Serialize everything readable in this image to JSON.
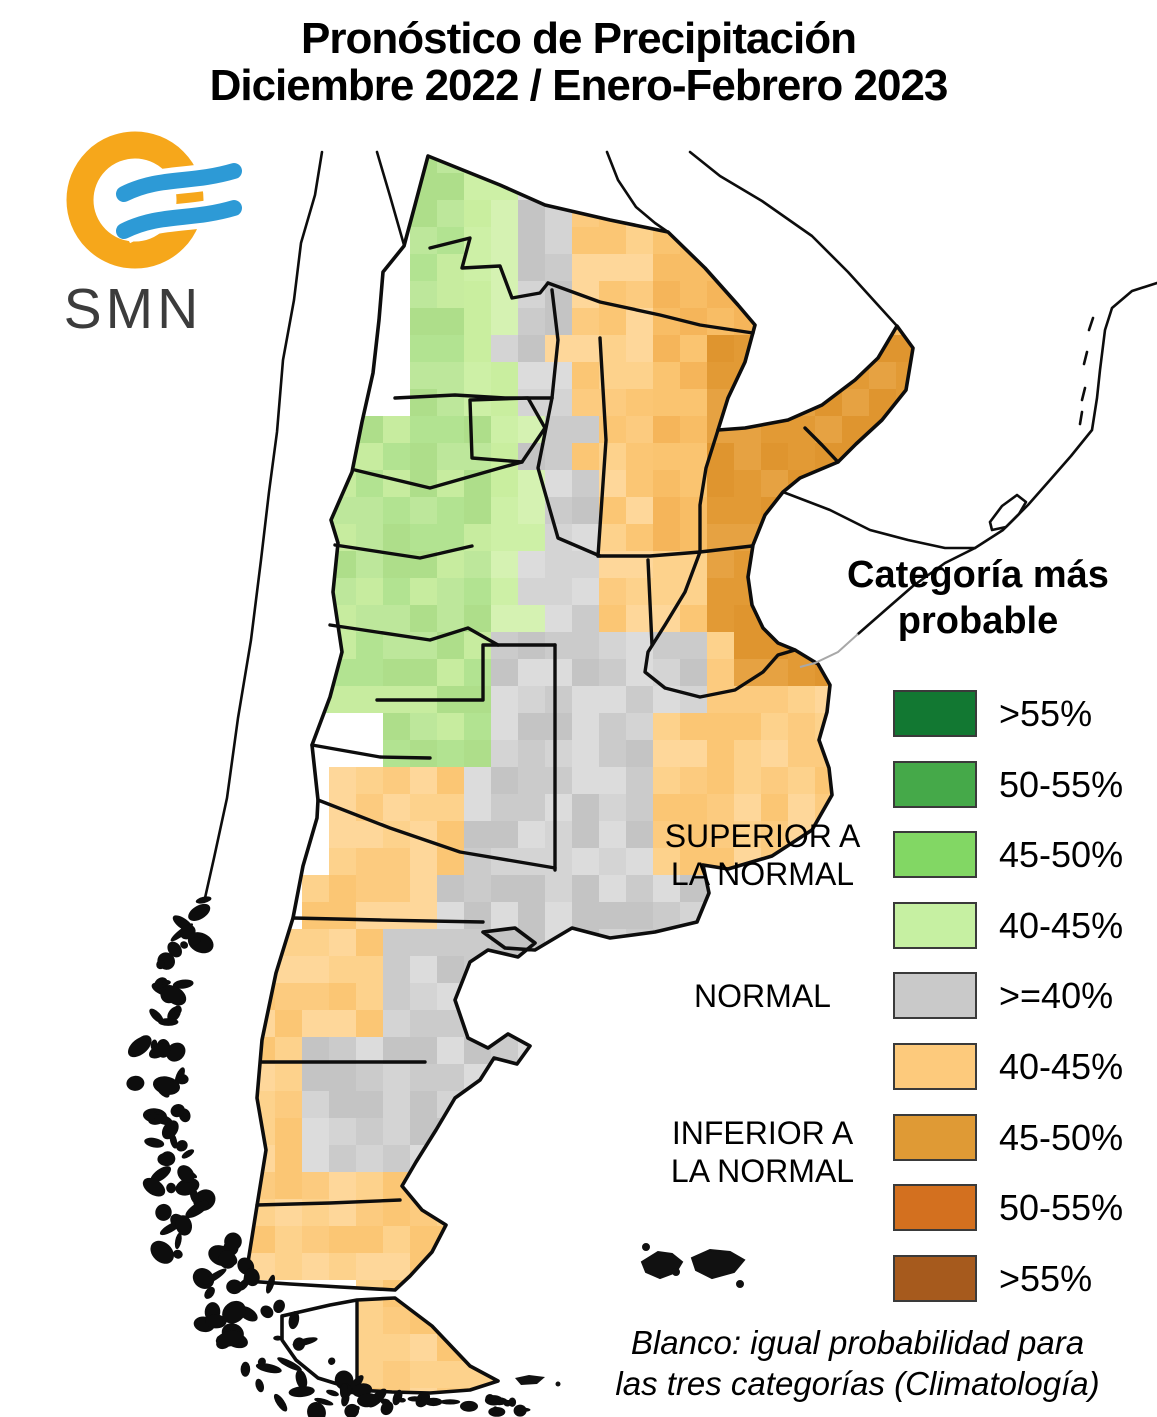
{
  "title": {
    "line1": "Pronóstico de Precipitación",
    "line2": "Diciembre 2022 / Enero-Febrero 2023"
  },
  "logo": {
    "text": "SMN",
    "ring_color": "#F6A71B",
    "wave_color": "#2D9AD6"
  },
  "legend": {
    "title_line1": "Categoría más",
    "title_line2": "probable",
    "items": [
      {
        "label": ">55%",
        "color": "#127832"
      },
      {
        "label": "50-55%",
        "color": "#45a949"
      },
      {
        "label": "45-50%",
        "color": "#82d764"
      },
      {
        "label": "40-45%",
        "color": "#c6f0a2"
      },
      {
        "label": ">=40%",
        "color": "#c9c9c9"
      },
      {
        "label": "40-45%",
        "color": "#fdca7c"
      },
      {
        "label": "45-50%",
        "color": "#df9a35"
      },
      {
        "label": "50-55%",
        "color": "#d3701f"
      },
      {
        "label": ">55%",
        "color": "#a65a1d"
      }
    ],
    "groups": [
      {
        "line1": "SUPERIOR A",
        "line2": "LA NORMAL"
      },
      {
        "line1": "NORMAL",
        "line2": ""
      },
      {
        "line1": "INFERIOR A",
        "line2": "LA NORMAL"
      }
    ]
  },
  "footnote": {
    "line1": "Blanco: igual probabilidad para",
    "line2": "las tres categorías (Climatología)"
  },
  "map": {
    "zone_colors": {
      "green": "#b9e795",
      "gray": "#cccccc",
      "light_orange": "#fccb7f",
      "mid_orange": "#f7bd65",
      "dark_orange": "#e29a35",
      "white": "#ffffff"
    }
  }
}
